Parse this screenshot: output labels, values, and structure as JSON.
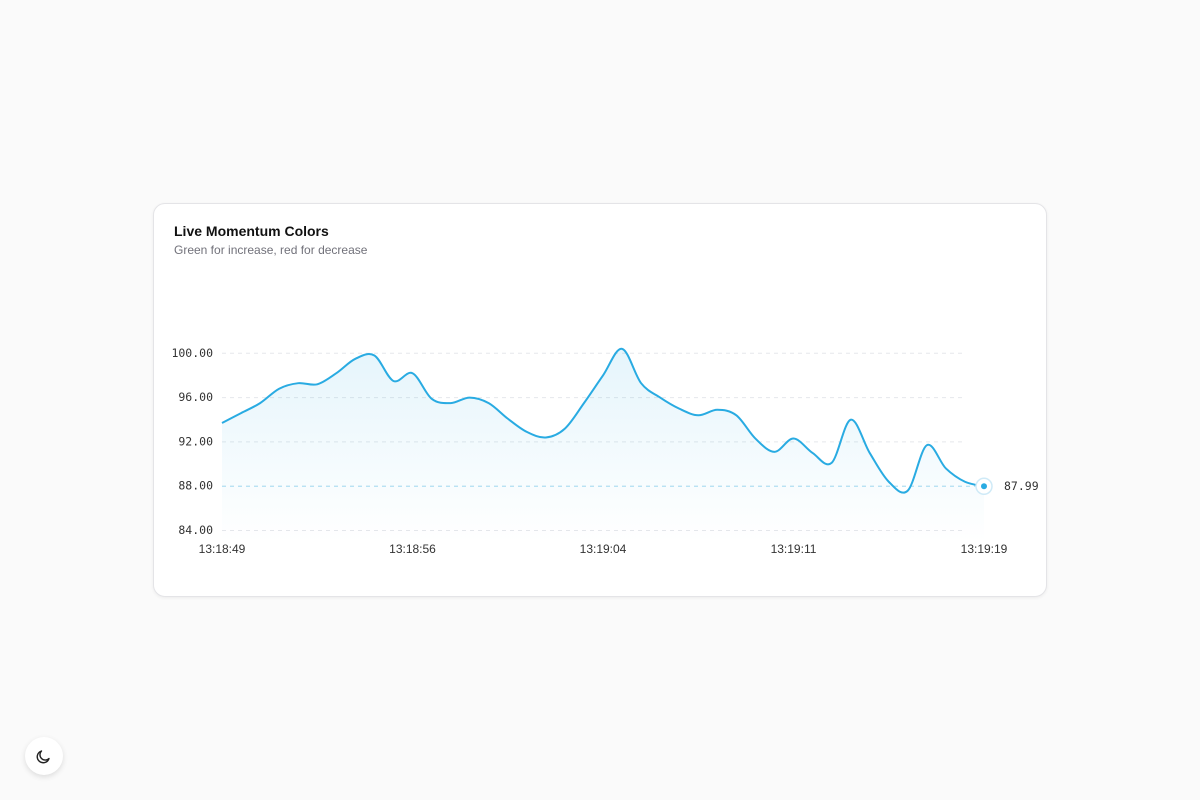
{
  "chart_data": {
    "type": "line",
    "title": "Live Momentum Colors",
    "subtitle": "Green for increase, red for decrease",
    "categories": [
      "13:18:49",
      null,
      null,
      null,
      null,
      null,
      null,
      null,
      null,
      null,
      "13:18:56",
      null,
      null,
      null,
      null,
      null,
      null,
      null,
      null,
      null,
      "13:19:04",
      null,
      null,
      null,
      null,
      null,
      null,
      null,
      null,
      null,
      "13:19:11",
      null,
      null,
      null,
      null,
      null,
      null,
      null,
      null,
      null,
      "13:19:19"
    ],
    "values": [
      93.7,
      94.6,
      95.5,
      96.8,
      97.3,
      97.2,
      98.2,
      99.5,
      99.8,
      97.5,
      98.2,
      95.9,
      95.5,
      96.0,
      95.5,
      94.1,
      92.9,
      92.4,
      93.2,
      95.5,
      98.0,
      100.4,
      97.3,
      96.0,
      95.0,
      94.4,
      94.9,
      94.4,
      92.3,
      91.1,
      92.3,
      91.0,
      90.1,
      94.0,
      91.0,
      88.4,
      87.6,
      91.7,
      89.6,
      88.4,
      87.99
    ],
    "color": "#29abe2",
    "ylim": [
      83.5,
      101.2
    ],
    "yticks": [
      {
        "value": 84,
        "label": "84.00"
      },
      {
        "value": 88,
        "label": "88.00"
      },
      {
        "value": 92,
        "label": "92.00"
      },
      {
        "value": 96,
        "label": "96.00"
      },
      {
        "value": 100,
        "label": "100.00"
      }
    ],
    "grid": true
  }
}
